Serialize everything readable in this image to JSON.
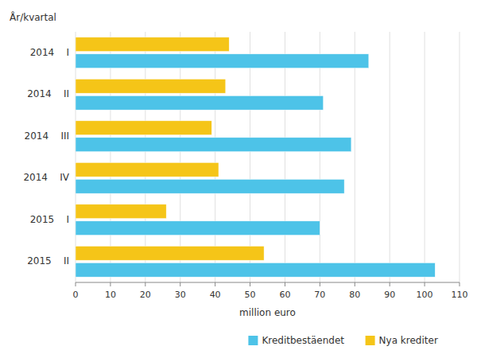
{
  "chart_data": {
    "type": "bar",
    "orientation": "horizontal",
    "categories": [
      "2014    I",
      "2014    II",
      "2014    III",
      "2014    IV",
      "2015    I",
      "2015    II"
    ],
    "series": [
      {
        "name": "Kreditbestäendet",
        "color": "#4DC3E8",
        "values": [
          84,
          71,
          79,
          77,
          70,
          103
        ]
      },
      {
        "name": "Nya krediter",
        "color": "#F5C518",
        "values": [
          44,
          43,
          39,
          41,
          26,
          54
        ]
      }
    ],
    "xlabel": "million euro",
    "ylabel": "År/kvartal",
    "xlim": [
      0,
      110
    ],
    "xticks": [
      0,
      10,
      20,
      30,
      40,
      50,
      60,
      70,
      80,
      90,
      100,
      110
    ],
    "grid": true,
    "legend": "lower right"
  }
}
